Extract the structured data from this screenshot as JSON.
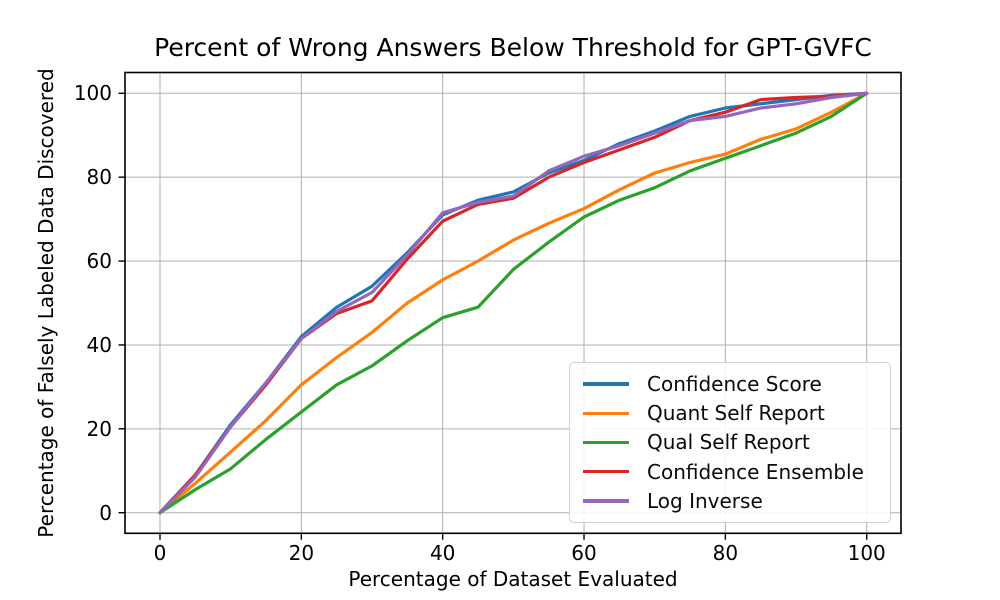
{
  "chart_data": {
    "type": "line",
    "title": "Percent of Wrong Answers Below Threshold for GPT-GVFC",
    "xlabel": "Percentage of Dataset Evaluated",
    "ylabel": "Percentage of Falsely Labeled Data Discovered",
    "xlim": [
      -5,
      105
    ],
    "ylim": [
      -5,
      105
    ],
    "xticks": [
      0,
      20,
      40,
      60,
      80,
      100
    ],
    "yticks": [
      0,
      20,
      40,
      60,
      80,
      100
    ],
    "grid": true,
    "legend_position": "lower right",
    "x": [
      0,
      5,
      10,
      15,
      20,
      25,
      30,
      35,
      40,
      45,
      50,
      55,
      60,
      65,
      70,
      75,
      80,
      85,
      90,
      95,
      100
    ],
    "series": [
      {
        "name": "Confidence Score",
        "color": "#1f77b4",
        "values": [
          0,
          9,
          21,
          31,
          42,
          49,
          54,
          62,
          71,
          74.5,
          76.5,
          81,
          84,
          88,
          91,
          94.5,
          96.5,
          97.5,
          98.5,
          99.5,
          100
        ]
      },
      {
        "name": "Quant Self Report",
        "color": "#ff7f0e",
        "values": [
          0,
          7,
          14.5,
          22,
          30.5,
          37,
          43,
          50,
          55.5,
          60,
          65,
          69,
          72.5,
          77,
          81,
          83.5,
          85.5,
          89,
          91.5,
          95.5,
          100
        ]
      },
      {
        "name": "Qual Self Report",
        "color": "#2ca02c",
        "values": [
          0,
          5.5,
          10.5,
          17.5,
          24,
          30.5,
          35,
          41,
          46.5,
          49,
          58,
          64.5,
          70.5,
          74.5,
          77.5,
          81.5,
          84.5,
          87.5,
          90.5,
          94.5,
          100
        ]
      },
      {
        "name": "Confidence Ensemble",
        "color": "#d62728",
        "values": [
          0,
          9,
          20.5,
          30.5,
          41.5,
          47.5,
          50.5,
          60.5,
          69.5,
          73.5,
          75,
          80,
          83.5,
          86.5,
          89.5,
          93.5,
          95.5,
          98.5,
          99,
          99.3,
          100
        ]
      },
      {
        "name": "Log Inverse",
        "color": "#9467bd",
        "values": [
          0,
          8.5,
          20.5,
          31,
          41.5,
          48,
          52.5,
          61.5,
          71.5,
          74,
          75.5,
          81.5,
          85,
          87.5,
          90.5,
          93.5,
          94.5,
          96.5,
          97.5,
          99,
          100
        ]
      }
    ]
  },
  "colors": {
    "grid": "#b0b0b0",
    "spine": "#000000",
    "legend_border": "#d2d2d2",
    "text": "#000000"
  }
}
